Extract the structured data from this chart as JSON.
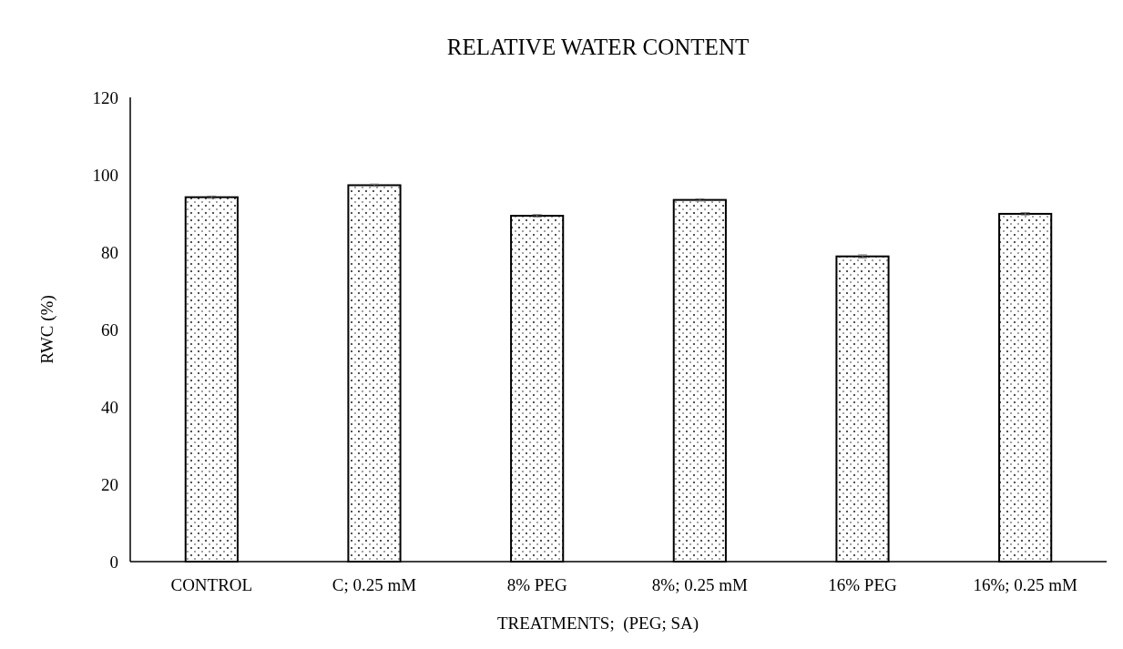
{
  "chart_data": {
    "type": "bar",
    "title": "RELATIVE WATER CONTENT",
    "xlabel": "TREATMENTS;  (PEG; SA)",
    "ylabel": "RWC (%)",
    "categories": [
      "CONTROL",
      "C; 0.25 mM",
      "8% PEG",
      "8%; 0.25 mM",
      "16% PEG",
      "16%; 0.25 mM"
    ],
    "values": [
      94.2,
      97.3,
      89.4,
      93.5,
      78.9,
      89.9
    ],
    "errors": [
      0.3,
      0.3,
      0.3,
      0.3,
      0.4,
      0.3
    ],
    "color": "#000000",
    "ylim": [
      0,
      120
    ],
    "yticks": [
      0,
      20,
      40,
      60,
      80,
      100,
      120
    ],
    "grid": false
  }
}
